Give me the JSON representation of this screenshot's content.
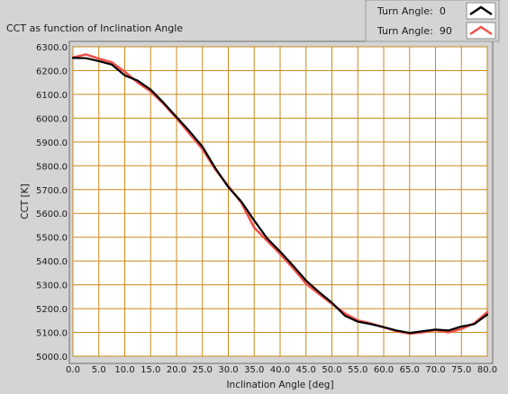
{
  "colors": {
    "panel": "#d4d4d4",
    "plot_background": "#ffffff",
    "grid": "#c8891b",
    "series_turn_0": "#000000",
    "series_turn_90": "#f0504a"
  },
  "chart_data": {
    "type": "line",
    "title": "CCT as function of Inclination Angle",
    "xlabel": "Inclination Angle [deg]",
    "ylabel": "CCT [K]",
    "xlim": [
      0,
      80
    ],
    "ylim": [
      5000,
      6300
    ],
    "grid": true,
    "legend_position": "top-right",
    "x_ticks": [
      "0.0",
      "5.0",
      "10.0",
      "15.0",
      "20.0",
      "25.0",
      "30.0",
      "35.0",
      "40.0",
      "45.0",
      "50.0",
      "55.0",
      "60.0",
      "65.0",
      "70.0",
      "75.0",
      "80.0"
    ],
    "y_ticks": [
      "6300.0",
      "6200.0",
      "6100.0",
      "6000.0",
      "5900.0",
      "5800.0",
      "5700.0",
      "5600.0",
      "5500.0",
      "5400.0",
      "5300.0",
      "5200.0",
      "5100.0",
      "5000.0"
    ],
    "series": [
      {
        "name": "Turn Angle:  0",
        "color": "#000000",
        "points": [
          [
            0,
            6253
          ],
          [
            2.5,
            6252
          ],
          [
            5,
            6240
          ],
          [
            7.5,
            6225
          ],
          [
            10,
            6180
          ],
          [
            12.5,
            6158
          ],
          [
            15,
            6120
          ],
          [
            17.5,
            6065
          ],
          [
            20,
            6005
          ],
          [
            22.5,
            5945
          ],
          [
            25,
            5880
          ],
          [
            27.5,
            5790
          ],
          [
            30,
            5710
          ],
          [
            32.5,
            5650
          ],
          [
            35,
            5570
          ],
          [
            37.5,
            5495
          ],
          [
            40,
            5440
          ],
          [
            42.5,
            5380
          ],
          [
            45,
            5318
          ],
          [
            47.5,
            5270
          ],
          [
            50,
            5225
          ],
          [
            52.5,
            5170
          ],
          [
            55,
            5145
          ],
          [
            57.5,
            5135
          ],
          [
            60,
            5122
          ],
          [
            62.5,
            5108
          ],
          [
            65,
            5098
          ],
          [
            67.5,
            5105
          ],
          [
            70,
            5112
          ],
          [
            72.5,
            5108
          ],
          [
            75,
            5125
          ],
          [
            77.5,
            5135
          ],
          [
            80,
            5175
          ]
        ]
      },
      {
        "name": "Turn Angle:  90",
        "color": "#f0504a",
        "points": [
          [
            0,
            6255
          ],
          [
            2.5,
            6268
          ],
          [
            5,
            6250
          ],
          [
            7.5,
            6235
          ],
          [
            10,
            6195
          ],
          [
            12.5,
            6150
          ],
          [
            15,
            6112
          ],
          [
            17.5,
            6060
          ],
          [
            20,
            6000
          ],
          [
            22.5,
            5935
          ],
          [
            25,
            5870
          ],
          [
            27.5,
            5785
          ],
          [
            30,
            5715
          ],
          [
            32.5,
            5645
          ],
          [
            35,
            5540
          ],
          [
            37.5,
            5485
          ],
          [
            40,
            5430
          ],
          [
            42.5,
            5370
          ],
          [
            45,
            5305
          ],
          [
            47.5,
            5262
          ],
          [
            50,
            5220
          ],
          [
            52.5,
            5180
          ],
          [
            55,
            5150
          ],
          [
            57.5,
            5138
          ],
          [
            60,
            5122
          ],
          [
            62.5,
            5105
          ],
          [
            65,
            5095
          ],
          [
            67.5,
            5100
          ],
          [
            70,
            5110
          ],
          [
            72.5,
            5100
          ],
          [
            75,
            5115
          ],
          [
            77.5,
            5138
          ],
          [
            80,
            5185
          ]
        ]
      }
    ]
  }
}
